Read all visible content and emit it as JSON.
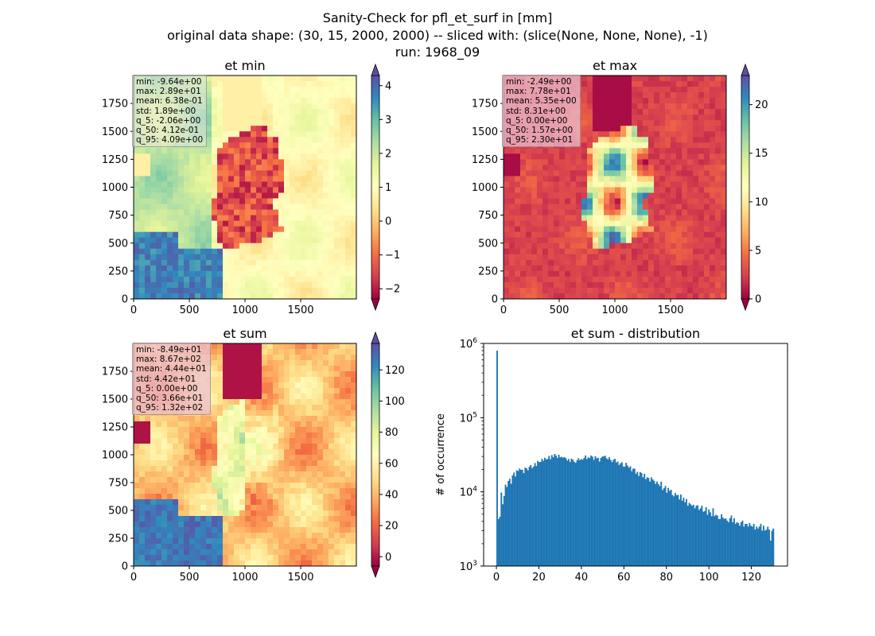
{
  "figure": {
    "title_line1": "Sanity-Check for pfl_et_surf in [mm]",
    "title_line2": "original data shape: (30, 15, 2000, 2000) -- sliced with: (slice(None, None, None), -1)",
    "title_line3": "run: 1968_09"
  },
  "palette": {
    "spectral": [
      "#9e0142",
      "#d53e4f",
      "#f46d43",
      "#fdae61",
      "#fee08b",
      "#ffffbf",
      "#e6f598",
      "#abdda4",
      "#66c2a5",
      "#3288bd",
      "#5e4fa2"
    ],
    "hist_bar": "#1f77b4"
  },
  "maps": [
    {
      "title": "et min",
      "x_ticks": [
        "0",
        "500",
        "1000",
        "1500"
      ],
      "x_tick_values": [
        0,
        500,
        1000,
        1500
      ],
      "y_ticks": [
        "0",
        "250",
        "500",
        "750",
        "1000",
        "1250",
        "1500",
        "1750"
      ],
      "y_tick_values": [
        0,
        250,
        500,
        750,
        1000,
        1250,
        1500,
        1750
      ],
      "colorbar_ticks": [
        "−2",
        "−1",
        "0",
        "1",
        "2",
        "3",
        "4"
      ],
      "colorbar_tick_values": [
        -2,
        -1,
        0,
        1,
        2,
        3,
        4
      ],
      "colorbar_range": [
        -2.3,
        4.3
      ],
      "stats": [
        "min: -9.64e+00",
        "max: 2.89e+01",
        "mean: 6.38e-01",
        "std: 1.89e+00",
        "q_5: -2.06e+00",
        "q_50: 4.12e-01",
        "q_95: 4.09e+00"
      ]
    },
    {
      "title": "et max",
      "x_ticks": [
        "0",
        "500",
        "1000",
        "1500"
      ],
      "x_tick_values": [
        0,
        500,
        1000,
        1500
      ],
      "y_ticks": [
        "0",
        "250",
        "500",
        "750",
        "1000",
        "1250",
        "1500",
        "1750"
      ],
      "y_tick_values": [
        0,
        250,
        500,
        750,
        1000,
        1250,
        1500,
        1750
      ],
      "colorbar_ticks": [
        "0",
        "5",
        "10",
        "15",
        "20"
      ],
      "colorbar_tick_values": [
        0,
        5,
        10,
        15,
        20
      ],
      "colorbar_range": [
        0,
        23
      ],
      "stats": [
        "min: -2.49e+00",
        "max: 7.78e+01",
        "mean: 5.35e+00",
        "std: 8.31e+00",
        "q_5: 0.00e+00",
        "q_50: 1.57e+00",
        "q_95: 2.30e+01"
      ]
    },
    {
      "title": "et sum",
      "x_ticks": [
        "0",
        "500",
        "1000",
        "1500"
      ],
      "x_tick_values": [
        0,
        500,
        1000,
        1500
      ],
      "y_ticks": [
        "0",
        "250",
        "500",
        "750",
        "1000",
        "1250",
        "1500",
        "1750"
      ],
      "y_tick_values": [
        0,
        250,
        500,
        750,
        1000,
        1250,
        1500,
        1750
      ],
      "colorbar_ticks": [
        "0",
        "20",
        "40",
        "60",
        "80",
        "100",
        "120"
      ],
      "colorbar_tick_values": [
        0,
        20,
        40,
        60,
        80,
        100,
        120
      ],
      "colorbar_range": [
        -6,
        137
      ],
      "stats": [
        "min: -8.49e+01",
        "max: 8.67e+02",
        "mean: 4.44e+01",
        "std: 4.42e+01",
        "q_5: 0.00e+00",
        "q_50: 3.66e+01",
        "q_95: 1.32e+02"
      ]
    }
  ],
  "chart_data": {
    "type": "bar",
    "title": "et sum - distribution",
    "xlabel": "",
    "ylabel": "# of occurrence",
    "xlim": [
      -6,
      137
    ],
    "ylim": [
      1000,
      1000000
    ],
    "yscale": "log",
    "x_ticks": [
      "0",
      "20",
      "40",
      "60",
      "80",
      "100",
      "120"
    ],
    "x_tick_values": [
      0,
      20,
      40,
      60,
      80,
      100,
      120
    ],
    "y_ticks": [
      "10",
      "10",
      "10",
      "10"
    ],
    "y_tick_exponents": [
      "3",
      "4",
      "5",
      "6"
    ],
    "y_tick_values": [
      1000,
      10000,
      100000,
      1000000
    ],
    "bin_width": 0.66,
    "bins_x": [
      0,
      0.66,
      1.32,
      1.98,
      2.64,
      3.3,
      3.96,
      4.62,
      5.28,
      5.94,
      6.6,
      7.26,
      7.92,
      8.58,
      9.24,
      9.9,
      10.56,
      11.22,
      11.88,
      12.54,
      13.2,
      13.86,
      14.52,
      15.18,
      15.84,
      16.5,
      17.16,
      17.82,
      18.48,
      19.14,
      19.8,
      20.46,
      21.12,
      21.78,
      22.44,
      23.1,
      23.76,
      24.42,
      25.08,
      25.74,
      26.4,
      27.06,
      27.72,
      28.38,
      29.04,
      29.7,
      30.36,
      31.02,
      31.68,
      32.34,
      33.0,
      33.66,
      34.32,
      34.98,
      35.64,
      36.3,
      36.96,
      37.62,
      38.28,
      38.94,
      39.6,
      40.26,
      40.92,
      41.58,
      42.24,
      42.9,
      43.56,
      44.22,
      44.88,
      45.54,
      46.2,
      46.86,
      47.52,
      48.18,
      48.84,
      49.5,
      50.16,
      50.82,
      51.48,
      52.14,
      52.8,
      53.46,
      54.12,
      54.78,
      55.44,
      56.1,
      56.76,
      57.42,
      58.08,
      58.74,
      59.4,
      60.06,
      60.72,
      61.38,
      62.04,
      62.7,
      63.36,
      64.02,
      64.68,
      65.34,
      66.0,
      66.66,
      67.32,
      67.98,
      68.64,
      69.3,
      69.96,
      70.62,
      71.28,
      71.94,
      72.6,
      73.26,
      73.92,
      74.58,
      75.24,
      75.9,
      76.56,
      77.22,
      77.88,
      78.54,
      79.2,
      79.86,
      80.52,
      81.18,
      81.84,
      82.5,
      83.16,
      83.82,
      84.48,
      85.14,
      85.8,
      86.46,
      87.12,
      87.78,
      88.44,
      89.1,
      89.76,
      90.42,
      91.08,
      91.74,
      92.4,
      93.06,
      93.72,
      94.38,
      95.04,
      95.7,
      96.36,
      97.02,
      97.68,
      98.34,
      99.0,
      99.66,
      100.32,
      100.98,
      101.64,
      102.3,
      102.96,
      103.62,
      104.28,
      104.94,
      105.6,
      106.26,
      106.92,
      107.58,
      108.24,
      108.9,
      109.56,
      110.22,
      110.88,
      111.54,
      112.2,
      112.86,
      113.52,
      114.18,
      114.84,
      115.5,
      116.16,
      116.82,
      117.48,
      118.14,
      118.8,
      119.46,
      120.12,
      120.78,
      121.44,
      122.1,
      122.76,
      123.42,
      124.08,
      124.74,
      125.4,
      126.06,
      126.72,
      127.38,
      128.04,
      128.7,
      129.36,
      130.02,
      130.68,
      131.34
    ],
    "counts": [
      800000,
      4300,
      4600,
      9800,
      6800,
      8800,
      12500,
      11600,
      14000,
      15000,
      12800,
      16700,
      18200,
      16100,
      19500,
      19100,
      20600,
      19800,
      19900,
      17900,
      21200,
      20700,
      19500,
      21800,
      23000,
      20900,
      21900,
      24500,
      22300,
      26100,
      25100,
      25300,
      27800,
      26200,
      28800,
      27400,
      27700,
      30500,
      27500,
      31300,
      29200,
      32400,
      30800,
      28500,
      31600,
      29200,
      29600,
      28900,
      29400,
      28400,
      26400,
      27700,
      25300,
      28100,
      27100,
      25400,
      24600,
      26600,
      28400,
      26700,
      27800,
      27100,
      28600,
      30900,
      27600,
      29200,
      28500,
      30800,
      29800,
      27000,
      30300,
      28400,
      28700,
      25600,
      28600,
      29900,
      30000,
      30700,
      28400,
      27400,
      29300,
      26900,
      25200,
      27100,
      27900,
      24900,
      25600,
      23000,
      24200,
      25000,
      22000,
      21800,
      24600,
      22600,
      21100,
      22100,
      19000,
      20600,
      20500,
      17500,
      18600,
      16400,
      18500,
      17900,
      15700,
      17500,
      14800,
      15700,
      15400,
      13800,
      15700,
      14700,
      14000,
      12800,
      13800,
      12700,
      12000,
      13700,
      10600,
      11200,
      12000,
      9700,
      11300,
      10300,
      10700,
      9100,
      8700,
      9700,
      9000,
      9100,
      7900,
      9200,
      7600,
      8300,
      7200,
      8000,
      6500,
      7100,
      6800,
      6500,
      6700,
      6000,
      6500,
      6600,
      5700,
      6000,
      6500,
      5400,
      5500,
      6200,
      4900,
      5800,
      5300,
      4700,
      6000,
      4700,
      4900,
      4800,
      4300,
      4300,
      5000,
      4500,
      4300,
      4400,
      4100,
      3900,
      4400,
      4800,
      3900,
      4400,
      3700,
      3900,
      3800,
      3500,
      3900,
      4100,
      3400,
      3700,
      3700,
      3400,
      3800,
      3500,
      3400,
      3700,
      3100,
      3400,
      3200,
      3400,
      3700,
      3000,
      3500,
      3000,
      3100,
      3400,
      3100,
      2200,
      3000,
      3200
    ]
  }
}
